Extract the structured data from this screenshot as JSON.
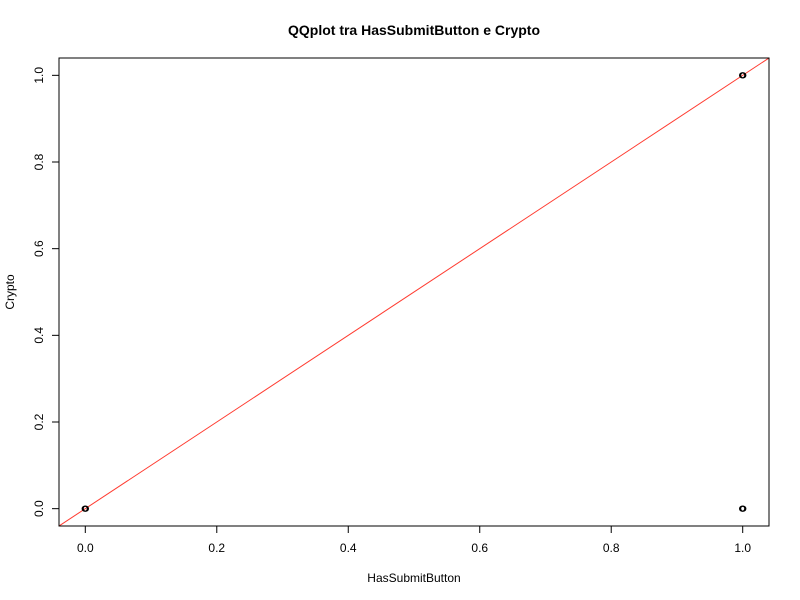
{
  "chart_data": {
    "type": "scatter",
    "title": "QQplot tra HasSubmitButton e Crypto",
    "xlabel": "HasSubmitButton",
    "ylabel": "Crypto",
    "xlim": [
      -0.04,
      1.04
    ],
    "ylim": [
      -0.04,
      1.04
    ],
    "x_ticks": [
      0.0,
      0.2,
      0.4,
      0.6,
      0.8,
      1.0
    ],
    "x_tick_labels": [
      "0.0",
      "0.2",
      "0.4",
      "0.6",
      "0.8",
      "1.0"
    ],
    "y_ticks": [
      0.0,
      0.2,
      0.4,
      0.6,
      0.8,
      1.0
    ],
    "y_tick_labels": [
      "0.0",
      "0.2",
      "0.4",
      "0.6",
      "0.8",
      "1.0"
    ],
    "grid": false,
    "series": [
      {
        "name": "quantiles",
        "marker": "open-circle",
        "color": "#000000",
        "x": [
          0.0,
          1.0,
          1.0
        ],
        "y": [
          0.0,
          0.0,
          1.0
        ]
      }
    ],
    "reference_line": {
      "name": "y = x",
      "intercept": 0,
      "slope": 1,
      "color": "#ff3b30"
    }
  }
}
